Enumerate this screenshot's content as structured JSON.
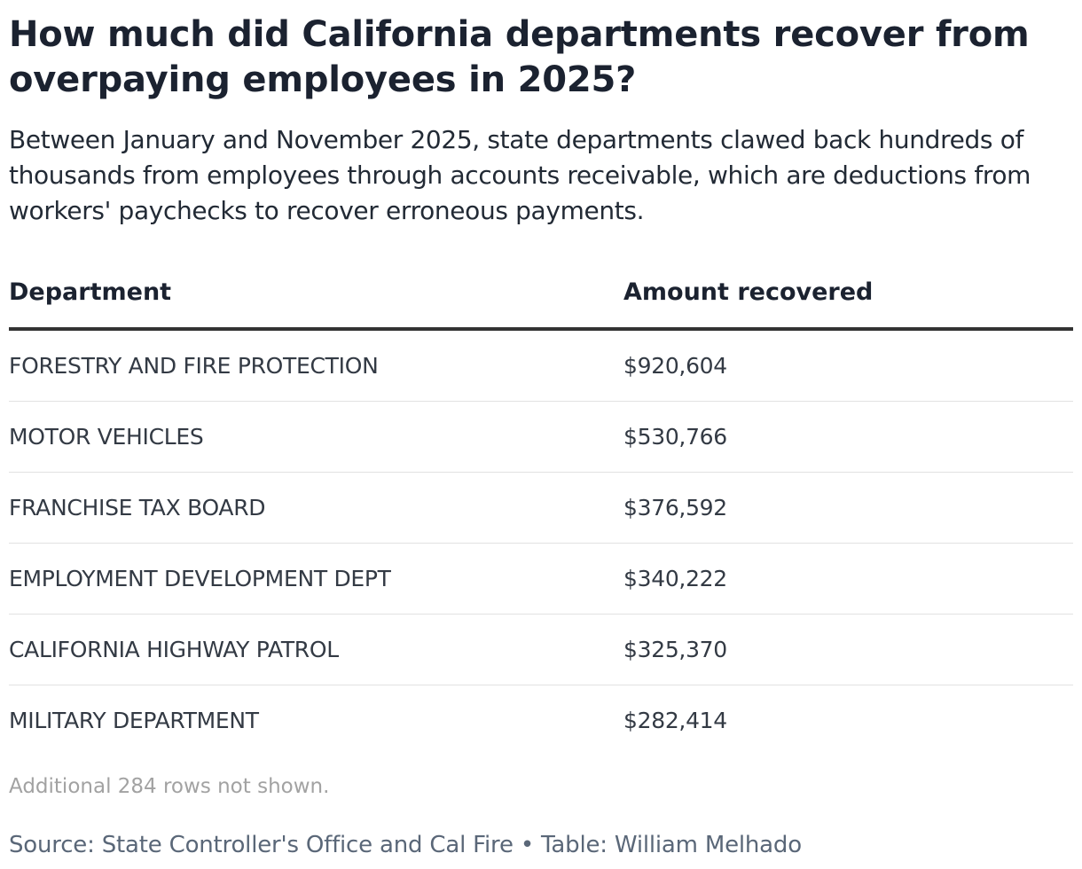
{
  "header": {
    "title": "How much did California departments recover from overpaying employees in 2025?",
    "subtitle": "Between January and November 2025, state departments clawed back hundreds of thousands from employees through accounts receivable, which are deductions from workers' paychecks to recover erroneous payments."
  },
  "chart_data": {
    "type": "table",
    "title": "How much did California departments recover from overpaying employees in 2025?",
    "columns": [
      "Department",
      "Amount recovered"
    ],
    "rows": [
      {
        "department": "FORESTRY AND FIRE PROTECTION",
        "amount": "$920,604"
      },
      {
        "department": "MOTOR VEHICLES",
        "amount": "$530,766"
      },
      {
        "department": "FRANCHISE TAX BOARD",
        "amount": "$376,592"
      },
      {
        "department": "EMPLOYMENT DEVELOPMENT DEPT",
        "amount": "$340,222"
      },
      {
        "department": "CALIFORNIA HIGHWAY PATROL",
        "amount": "$325,370"
      },
      {
        "department": "MILITARY DEPARTMENT",
        "amount": "$282,414"
      }
    ]
  },
  "footer": {
    "note": "Additional 284 rows not shown.",
    "source": "Source: State Controller's Office and Cal Fire • Table: William Melhado"
  }
}
